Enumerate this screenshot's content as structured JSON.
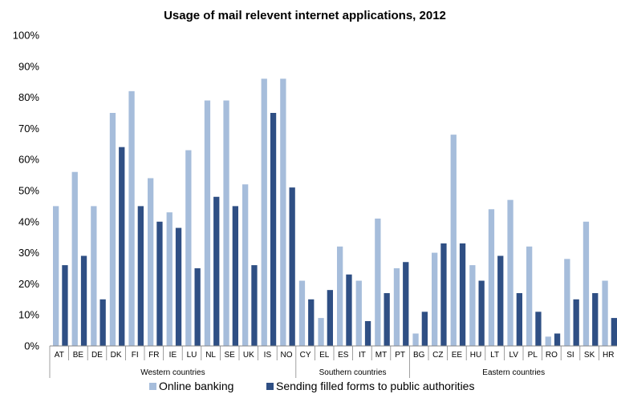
{
  "chart_data": {
    "type": "bar",
    "title": "Usage of mail relevent internet applications, 2012",
    "xlabel": "",
    "ylabel": "",
    "ylim": [
      0,
      100
    ],
    "yticks": [
      "0%",
      "10%",
      "20%",
      "30%",
      "40%",
      "50%",
      "60%",
      "70%",
      "80%",
      "90%",
      "100%"
    ],
    "grid": false,
    "legend_position": "bottom",
    "categories": [
      "AT",
      "BE",
      "DE",
      "DK",
      "FI",
      "FR",
      "IE",
      "LU",
      "NL",
      "SE",
      "UK",
      "IS",
      "NO",
      "CY",
      "EL",
      "ES",
      "IT",
      "MT",
      "PT",
      "BG",
      "CZ",
      "EE",
      "HU",
      "LT",
      "LV",
      "PL",
      "RO",
      "SI",
      "SK",
      "HR"
    ],
    "groups": [
      {
        "label": "Western countries",
        "start": 0,
        "end": 12
      },
      {
        "label": "Southern countries",
        "start": 13,
        "end": 18
      },
      {
        "label": "Eastern countries",
        "start": 19,
        "end": 29
      }
    ],
    "series": [
      {
        "name": "Online banking",
        "color": "#a6bddb",
        "values": [
          45,
          56,
          45,
          75,
          82,
          54,
          43,
          63,
          79,
          79,
          52,
          86,
          86,
          21,
          9,
          32,
          21,
          41,
          25,
          4,
          30,
          68,
          26,
          44,
          47,
          32,
          3,
          28,
          40,
          21
        ]
      },
      {
        "name": "Sending filled forms to public authorities",
        "color": "#2f4f84",
        "values": [
          26,
          29,
          15,
          64,
          45,
          40,
          38,
          25,
          48,
          45,
          26,
          75,
          51,
          15,
          18,
          23,
          8,
          17,
          27,
          11,
          33,
          33,
          21,
          29,
          17,
          11,
          4,
          15,
          17,
          9
        ]
      }
    ]
  }
}
